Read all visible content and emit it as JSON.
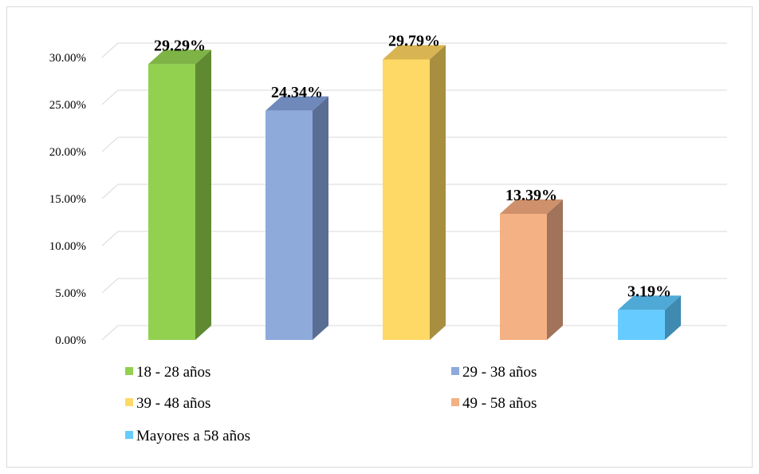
{
  "chart_data": {
    "type": "bar",
    "categories": [
      "18 - 28 años",
      "29 - 38 años",
      "39 - 48 años",
      "49 - 58 años",
      "Mayores a 58 años"
    ],
    "values": [
      29.29,
      24.34,
      29.79,
      13.39,
      3.19
    ],
    "data_labels": [
      "29.29%",
      "24.34%",
      "29.79%",
      "13.39%",
      "3.19%"
    ],
    "ylim": [
      0,
      30
    ],
    "ytick_labels": [
      "0.00%",
      "5.00%",
      "10.00%",
      "15.00%",
      "20.00%",
      "25.00%",
      "30.00%"
    ],
    "grid": true,
    "legend_position": "bottom",
    "colors": {
      "front": [
        "#92d050",
        "#8eaadb",
        "#ffd966",
        "#f4b183",
        "#66ccff"
      ],
      "side": [
        "#5f8a32",
        "#5a6e94",
        "#a88e3f",
        "#a0735a",
        "#3f8ab0"
      ],
      "top": [
        "#7eb346",
        "#6f89bb",
        "#d8b453",
        "#cf916b",
        "#4fa9d6"
      ]
    }
  }
}
